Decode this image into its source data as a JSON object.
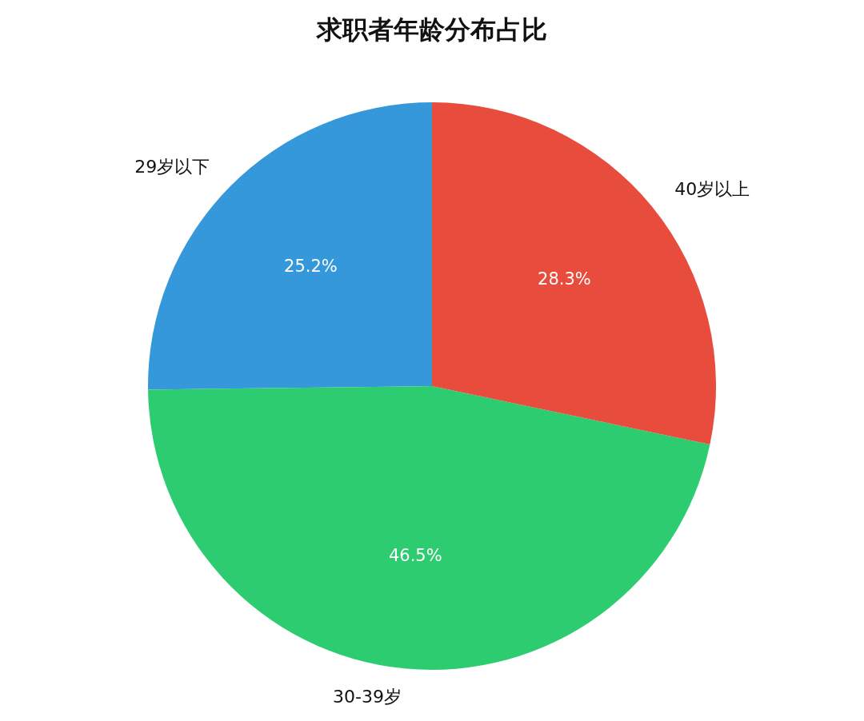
{
  "chart_data": {
    "type": "pie",
    "title": "求职者年龄分布占比",
    "categories": [
      "29岁以下",
      "30-39岁",
      "40岁以上"
    ],
    "values": [
      25.2,
      46.5,
      28.3
    ],
    "colors": [
      "#3498db",
      "#2ecc71",
      "#e74c3c"
    ],
    "value_labels": [
      "25.2%",
      "46.5%",
      "28.3%"
    ]
  }
}
